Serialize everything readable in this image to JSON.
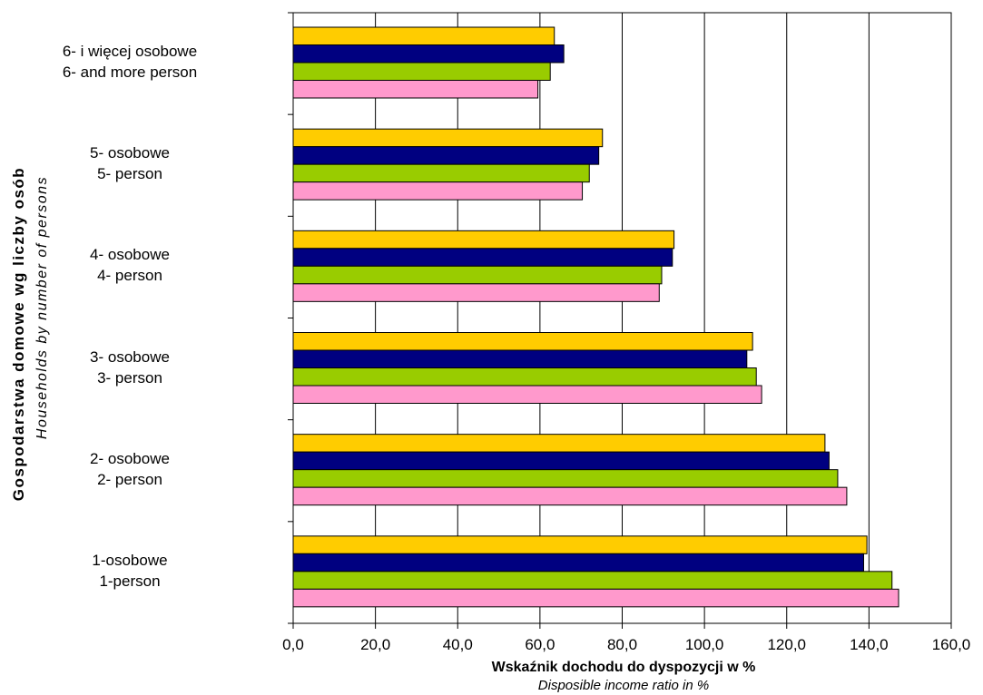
{
  "colors": {
    "series": [
      "#FFCC00",
      "#000080",
      "#99CC00",
      "#FF99CC"
    ],
    "grid": "#000000",
    "plot_background": "#ffffff"
  },
  "y_axis": {
    "title_pl": "Gospodarstwa domowe wg liczby osób",
    "title_en": "Households by number of persons"
  },
  "x_axis": {
    "title_pl": "Wskaźnik dochodu do dyspozycji w %",
    "title_en": "Disposible income ratio in %",
    "tick_labels": [
      "0,0",
      "20,0",
      "40,0",
      "60,0",
      "80,0",
      "100,0",
      "120,0",
      "140,0",
      "160,0"
    ]
  },
  "chart_data": {
    "type": "bar",
    "orientation": "horizontal",
    "categories": [
      {
        "pl": "6- i więcej osobowe",
        "en": "6-  and more person"
      },
      {
        "pl": "5- osobowe",
        "en": "5- person"
      },
      {
        "pl": "4- osobowe",
        "en": "4- person"
      },
      {
        "pl": "3- osobowe",
        "en": "3- person"
      },
      {
        "pl": "2- osobowe",
        "en": "2- person"
      },
      {
        "pl": "1-osobowe",
        "en": "1-person"
      }
    ],
    "series": [
      {
        "values": [
          63.5,
          75.2,
          92.6,
          111.7,
          129.3,
          139.5
        ]
      },
      {
        "values": [
          65.8,
          74.3,
          92.2,
          110.3,
          130.3,
          138.7
        ]
      },
      {
        "values": [
          62.5,
          72.0,
          89.6,
          112.6,
          132.4,
          145.6
        ]
      },
      {
        "values": [
          59.5,
          70.3,
          89.0,
          113.9,
          134.6,
          147.2
        ]
      }
    ],
    "xlim": [
      0,
      160
    ],
    "xticks": [
      0,
      20,
      40,
      60,
      80,
      100,
      120,
      140,
      160
    ],
    "grid": "vertical",
    "legend": "none"
  }
}
